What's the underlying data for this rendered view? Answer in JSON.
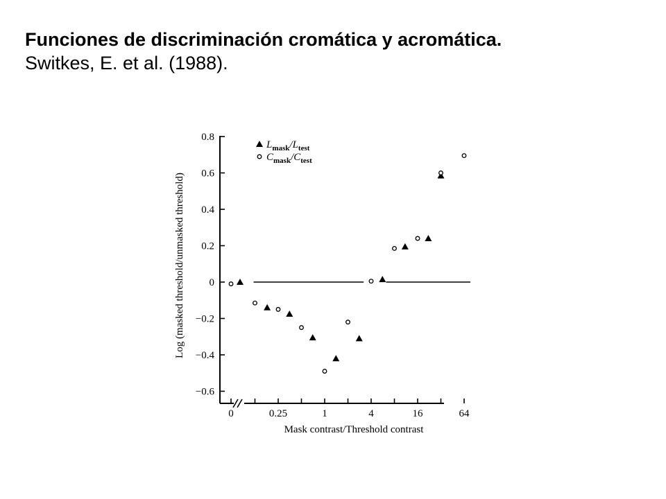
{
  "slide": {
    "title": "Funciones de discriminación cromática y acromática.",
    "subtitle": "Switkes, E. et al. (1988)."
  },
  "chart_data": {
    "type": "scatter",
    "xlabel": "Mask contrast/Threshold contrast",
    "ylabel": "Log (masked threshold/unmasked threshold)",
    "x_scale": "log2",
    "x_ticks": [
      {
        "value": 0,
        "label": "0"
      },
      {
        "value": 0.125,
        "label": ""
      },
      {
        "value": 0.25,
        "label": "0.25"
      },
      {
        "value": 0.5,
        "label": ""
      },
      {
        "value": 1,
        "label": "1"
      },
      {
        "value": 2,
        "label": ""
      },
      {
        "value": 4,
        "label": "4"
      },
      {
        "value": 8,
        "label": ""
      },
      {
        "value": 16,
        "label": "16"
      },
      {
        "value": 32,
        "label": ""
      },
      {
        "value": 64,
        "label": "64"
      }
    ],
    "y_ticks": [
      {
        "value": 0.8,
        "label": "0.8"
      },
      {
        "value": 0.6,
        "label": "0.6"
      },
      {
        "value": 0.4,
        "label": "0.4"
      },
      {
        "value": 0.2,
        "label": "0.2"
      },
      {
        "value": 0,
        "label": "0"
      },
      {
        "value": -0.2,
        "label": "−0.2"
      },
      {
        "value": -0.4,
        "label": "−0.4"
      },
      {
        "value": -0.6,
        "label": "−0.6"
      }
    ],
    "ylim": [
      -0.68,
      0.82
    ],
    "xlim": [
      0.075,
      90
    ],
    "axis_break": true,
    "legend_position": "top-left",
    "series": [
      {
        "legend_label": "L",
        "legend_sub1": "mask",
        "legend_sep": "/L",
        "legend_sub2": "test",
        "marker": "triangle",
        "points": [
          {
            "x": 0,
            "y": 0.0,
            "offset": 1
          },
          {
            "x": 0.18,
            "y": -0.14
          },
          {
            "x": 0.35,
            "y": -0.175
          },
          {
            "x": 0.7,
            "y": -0.305
          },
          {
            "x": 1.4,
            "y": -0.42
          },
          {
            "x": 2.8,
            "y": -0.31
          },
          {
            "x": 5.6,
            "y": 0.015
          },
          {
            "x": 11,
            "y": 0.195
          },
          {
            "x": 22,
            "y": 0.24
          },
          {
            "x": 32,
            "y": 0.585
          }
        ]
      },
      {
        "legend_label": "C",
        "legend_sub1": "mask",
        "legend_sep": "/C",
        "legend_sub2": "test",
        "marker": "circle",
        "points": [
          {
            "x": 0,
            "y": -0.01,
            "offset": 0
          },
          {
            "x": 0.125,
            "y": -0.115
          },
          {
            "x": 0.25,
            "y": -0.15
          },
          {
            "x": 0.5,
            "y": -0.25
          },
          {
            "x": 1,
            "y": -0.49
          },
          {
            "x": 2,
            "y": -0.22
          },
          {
            "x": 4,
            "y": 0.005
          },
          {
            "x": 8,
            "y": 0.185
          },
          {
            "x": 16,
            "y": 0.24
          },
          {
            "x": 32,
            "y": 0.6
          },
          {
            "x": 64,
            "y": 0.695
          }
        ]
      }
    ],
    "reference_line": {
      "y": 0,
      "segments": [
        [
          0.125,
          3.2
        ],
        [
          6.5,
          90
        ]
      ]
    }
  }
}
